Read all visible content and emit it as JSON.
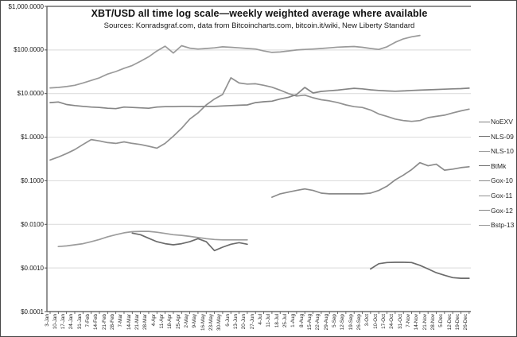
{
  "header": {
    "title": "XBT/USD all time log scale—weekly weighted average where available",
    "subtitle": "Sources: Konradsgraf.com, data from Bitcoincharts.com, bitcoin.it/wiki, New Liberty Standard"
  },
  "y_axis": {
    "tick_labels": [
      "$1,000.0000",
      "$100.0000",
      "$10.0000",
      "$1.0000",
      "$0.1000",
      "$0.0100",
      "$0.0010",
      "$0.0001"
    ],
    "tick_values": [
      1000,
      100,
      10,
      1,
      0.1,
      0.01,
      0.001,
      0.0001
    ]
  },
  "x_axis": {
    "tick_labels": [
      "3-Jan",
      "10-Jan",
      "17-Jan",
      "24-Jan",
      "31-Jan",
      "7-Feb",
      "14-Feb",
      "21-Feb",
      "28-Feb",
      "7-Mar",
      "14-Mar",
      "21-Mar",
      "28-Mar",
      "4-Apr",
      "11-Apr",
      "18-Apr",
      "25-Apr",
      "2-May",
      "9-May",
      "16-May",
      "23-May",
      "30-May",
      "6-Jun",
      "13-Jun",
      "20-Jun",
      "27-Jun",
      "4-Jul",
      "11-Jul",
      "18-Jul",
      "25-Jul",
      "1-Aug",
      "8-Aug",
      "15-Aug",
      "22-Aug",
      "29-Aug",
      "5-Sep",
      "12-Sep",
      "19-Sep",
      "26-Sep",
      "3-Oct",
      "10-Oct",
      "17-Oct",
      "24-Oct",
      "31-Oct",
      "7-Nov",
      "14-Nov",
      "21-Nov",
      "28-Nov",
      "5-Dec",
      "12-Dec",
      "19-Dec",
      "26-Dec"
    ]
  },
  "legend": {
    "items": [
      "NoEXV",
      "NLS-09",
      "NLS-10",
      "BtMk",
      "Gox-10",
      "Gox-11",
      "Gox-12",
      "Bstp-13"
    ]
  },
  "colors": {
    "grid": "#d9d9d9",
    "axis": "#4d4d4d",
    "tick": "#4d4d4d",
    "text": "#1a1a1a"
  },
  "chart_data": {
    "type": "line",
    "scale": "log10",
    "title": "XBT/USD all time log scale—weekly weighted average where available",
    "subtitle": "Sources: Konradsgraf.com, data from Bitcoincharts.com, bitcoin.it/wiki, New Liberty Standard",
    "xlabel": "",
    "ylabel": "",
    "ylim": [
      0.0001,
      1000
    ],
    "grid": "horizontal-decades",
    "legend_position": "right",
    "x_labels": [
      "3-Jan",
      "10-Jan",
      "17-Jan",
      "24-Jan",
      "31-Jan",
      "7-Feb",
      "14-Feb",
      "21-Feb",
      "28-Feb",
      "7-Mar",
      "14-Mar",
      "21-Mar",
      "28-Mar",
      "4-Apr",
      "11-Apr",
      "18-Apr",
      "25-Apr",
      "2-May",
      "9-May",
      "16-May",
      "23-May",
      "30-May",
      "6-Jun",
      "13-Jun",
      "20-Jun",
      "27-Jun",
      "4-Jul",
      "11-Jul",
      "18-Jul",
      "25-Jul",
      "1-Aug",
      "8-Aug",
      "15-Aug",
      "22-Aug",
      "29-Aug",
      "5-Sep",
      "12-Sep",
      "19-Sep",
      "26-Sep",
      "3-Oct",
      "10-Oct",
      "17-Oct",
      "24-Oct",
      "31-Oct",
      "7-Nov",
      "14-Nov",
      "21-Nov",
      "28-Nov",
      "5-Dec",
      "12-Dec",
      "19-Dec",
      "26-Dec"
    ],
    "series": [
      {
        "name": "NoEXV",
        "color": "#808080",
        "start_week": 0,
        "values": []
      },
      {
        "name": "NLS-09",
        "color": "#6b6b6b",
        "start_week": 39,
        "values": [
          0.00095,
          0.00125,
          0.00133,
          0.00135,
          0.00135,
          0.00133,
          0.00115,
          0.00095,
          0.00078,
          0.00068,
          0.0006,
          0.00058,
          0.00058
        ]
      },
      {
        "name": "NLS-10",
        "color": "#9c9c9c",
        "start_week": 1,
        "values": [
          0.0031,
          0.0032,
          0.0034,
          0.0036,
          0.004,
          0.0045,
          0.0052,
          0.0058,
          0.0064,
          0.0068,
          0.0069,
          0.0069,
          0.0066,
          0.0062,
          0.0058,
          0.0056,
          0.0053,
          0.005,
          0.0047,
          0.0045,
          0.0044,
          0.0044,
          0.0044,
          0.0044
        ]
      },
      {
        "name": "BtMk",
        "color": "#6b6b6b",
        "start_week": 10,
        "values": [
          0.0063,
          0.0058,
          0.0048,
          0.004,
          0.0036,
          0.0034,
          0.0036,
          0.004,
          0.0047,
          0.004,
          0.0025,
          0.003,
          0.0035,
          0.0038,
          0.0035
        ]
      },
      {
        "name": "Gox-10",
        "color": "#8a8a8a",
        "start_week": 27,
        "values": [
          0.042,
          0.05,
          0.055,
          0.06,
          0.065,
          0.06,
          0.052,
          0.05,
          0.05,
          0.05,
          0.05,
          0.05,
          0.052,
          0.06,
          0.075,
          0.105,
          0.135,
          0.18,
          0.26,
          0.22,
          0.24,
          0.175,
          0.185,
          0.2,
          0.21
        ]
      },
      {
        "name": "Gox-11",
        "color": "#919191",
        "start_week": 0,
        "values": [
          0.3,
          0.35,
          0.42,
          0.52,
          0.68,
          0.88,
          0.82,
          0.75,
          0.72,
          0.78,
          0.72,
          0.68,
          0.62,
          0.56,
          0.72,
          1.05,
          1.6,
          2.6,
          3.6,
          5.5,
          7.5,
          9.5,
          23,
          17.5,
          16.5,
          16.8,
          15.5,
          14,
          12,
          10,
          8.8,
          9.2,
          8.0,
          7.2,
          6.8,
          6.2,
          5.5,
          5.0,
          4.8,
          4.2,
          3.4,
          3.0,
          2.6,
          2.4,
          2.3,
          2.4,
          2.8,
          3.0,
          3.2,
          3.6,
          4.0,
          4.4
        ]
      },
      {
        "name": "Gox-12",
        "color": "#858585",
        "start_week": 0,
        "values": [
          6.2,
          6.4,
          5.6,
          5.3,
          5.1,
          4.9,
          4.8,
          4.6,
          4.5,
          4.9,
          4.8,
          4.7,
          4.6,
          4.9,
          5.0,
          5.0,
          5.1,
          5.1,
          5.0,
          5.1,
          5.1,
          5.2,
          5.3,
          5.4,
          5.5,
          6.2,
          6.5,
          6.7,
          7.5,
          8.2,
          9.5,
          13.8,
          10.3,
          11.2,
          11.6,
          12.0,
          12.6,
          13.2,
          12.8,
          12.2,
          11.8,
          11.5,
          11.3,
          11.5,
          11.8,
          12.0,
          12.2,
          12.4,
          12.6,
          12.8,
          13.0,
          13.3
        ]
      },
      {
        "name": "Bstp-13",
        "color": "#9a9a9a",
        "start_week": 0,
        "values": [
          13.5,
          13.8,
          14.5,
          15.5,
          17.5,
          20,
          23,
          28,
          32,
          38,
          44,
          55,
          70,
          95,
          122,
          85,
          125,
          110,
          105,
          108,
          112,
          118,
          115,
          112,
          108,
          105,
          95,
          88,
          90,
          95,
          100,
          103,
          105,
          108,
          112,
          116,
          118,
          120,
          115,
          108,
          103,
          118,
          150,
          180,
          200,
          215
        ]
      }
    ]
  }
}
